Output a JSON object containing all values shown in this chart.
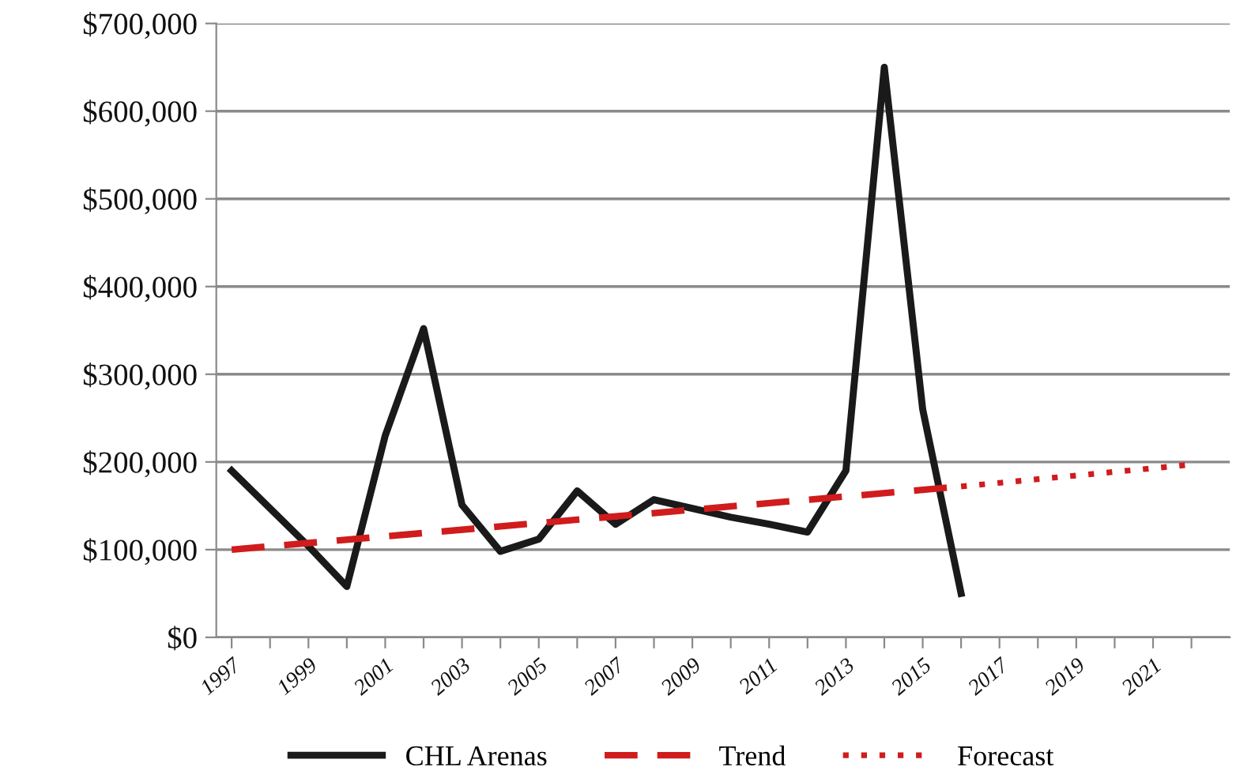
{
  "chart_data": {
    "type": "line",
    "x": [
      1997,
      1998,
      1999,
      2000,
      2001,
      2002,
      2003,
      2004,
      2005,
      2006,
      2007,
      2008,
      2009,
      2010,
      2011,
      2012,
      2013,
      2014,
      2015,
      2016
    ],
    "series": [
      {
        "name": "CHL Arenas",
        "color": "#1a1a1a",
        "line_style": "solid",
        "values": [
          190000,
          147000,
          104000,
          58000,
          230000,
          352000,
          151000,
          98000,
          112000,
          167000,
          129000,
          157000,
          147000,
          137000,
          129000,
          120000,
          190000,
          650000,
          260000,
          50000
        ]
      },
      {
        "name": "Trend",
        "color": "#d01c1c",
        "line_style": "dashed",
        "x": [
          1997,
          2016
        ],
        "values": [
          100000,
          172000
        ]
      },
      {
        "name": "Forecast",
        "color": "#d01c1c",
        "line_style": "dotted",
        "x": [
          2016,
          2022
        ],
        "values": [
          172000,
          197000
        ]
      }
    ],
    "xlim": [
      1996.6,
      2023.0
    ],
    "xticks": [
      {
        "value": 1997,
        "label": "1997"
      },
      {
        "value": 1998,
        "label": null
      },
      {
        "value": 1999,
        "label": "1999"
      },
      {
        "value": 2000,
        "label": null
      },
      {
        "value": 2001,
        "label": "2001"
      },
      {
        "value": 2002,
        "label": null
      },
      {
        "value": 2003,
        "label": "2003"
      },
      {
        "value": 2004,
        "label": null
      },
      {
        "value": 2005,
        "label": "2005"
      },
      {
        "value": 2006,
        "label": null
      },
      {
        "value": 2007,
        "label": "2007"
      },
      {
        "value": 2008,
        "label": null
      },
      {
        "value": 2009,
        "label": "2009"
      },
      {
        "value": 2010,
        "label": null
      },
      {
        "value": 2011,
        "label": "2011"
      },
      {
        "value": 2012,
        "label": null
      },
      {
        "value": 2013,
        "label": "2013"
      },
      {
        "value": 2014,
        "label": null
      },
      {
        "value": 2015,
        "label": "2015"
      },
      {
        "value": 2016,
        "label": null
      },
      {
        "value": 2017,
        "label": "2017"
      },
      {
        "value": 2018,
        "label": null
      },
      {
        "value": 2019,
        "label": "2019"
      },
      {
        "value": 2020,
        "label": null
      },
      {
        "value": 2021,
        "label": "2021"
      },
      {
        "value": 2022,
        "label": null
      }
    ],
    "ylim": [
      0,
      700000
    ],
    "yticks": [
      {
        "value": 0,
        "label": "$0"
      },
      {
        "value": 100000,
        "label": "$100,000"
      },
      {
        "value": 200000,
        "label": "$200,000"
      },
      {
        "value": 300000,
        "label": "$300,000"
      },
      {
        "value": 400000,
        "label": "$400,000"
      },
      {
        "value": 500000,
        "label": "$500,000"
      },
      {
        "value": 600000,
        "label": "$600,000"
      },
      {
        "value": 700000,
        "label": "$700,000"
      }
    ],
    "grid": "y",
    "legend": "bottom",
    "marker": "none"
  }
}
